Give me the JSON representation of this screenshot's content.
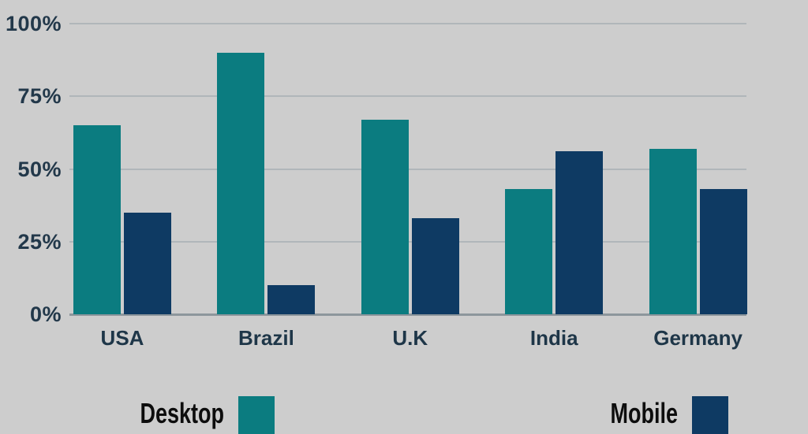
{
  "colors": {
    "background": "#cdcdcd",
    "gridline": "#b0b6ba",
    "baseline": "#8d969c",
    "axis_text": "#22384a",
    "legend_text": "#0d0d0d"
  },
  "chart_data": {
    "type": "bar",
    "title": "",
    "xlabel": "",
    "ylabel": "",
    "categories": [
      "USA",
      "Brazil",
      "U.K",
      "India",
      "Germany"
    ],
    "series": [
      {
        "name": "Desktop",
        "color": "#0b7c80",
        "values": [
          65,
          90,
          67,
          43,
          57
        ]
      },
      {
        "name": "Mobile",
        "color": "#0e3a63",
        "values": [
          35,
          10,
          33,
          56,
          43
        ]
      }
    ],
    "ylim": [
      0,
      100
    ],
    "yticks": [
      0,
      25,
      50,
      75,
      100
    ],
    "ytick_labels": [
      "0%",
      "25%",
      "50%",
      "75%",
      "100%"
    ],
    "grid": true,
    "legend_position": "bottom"
  }
}
